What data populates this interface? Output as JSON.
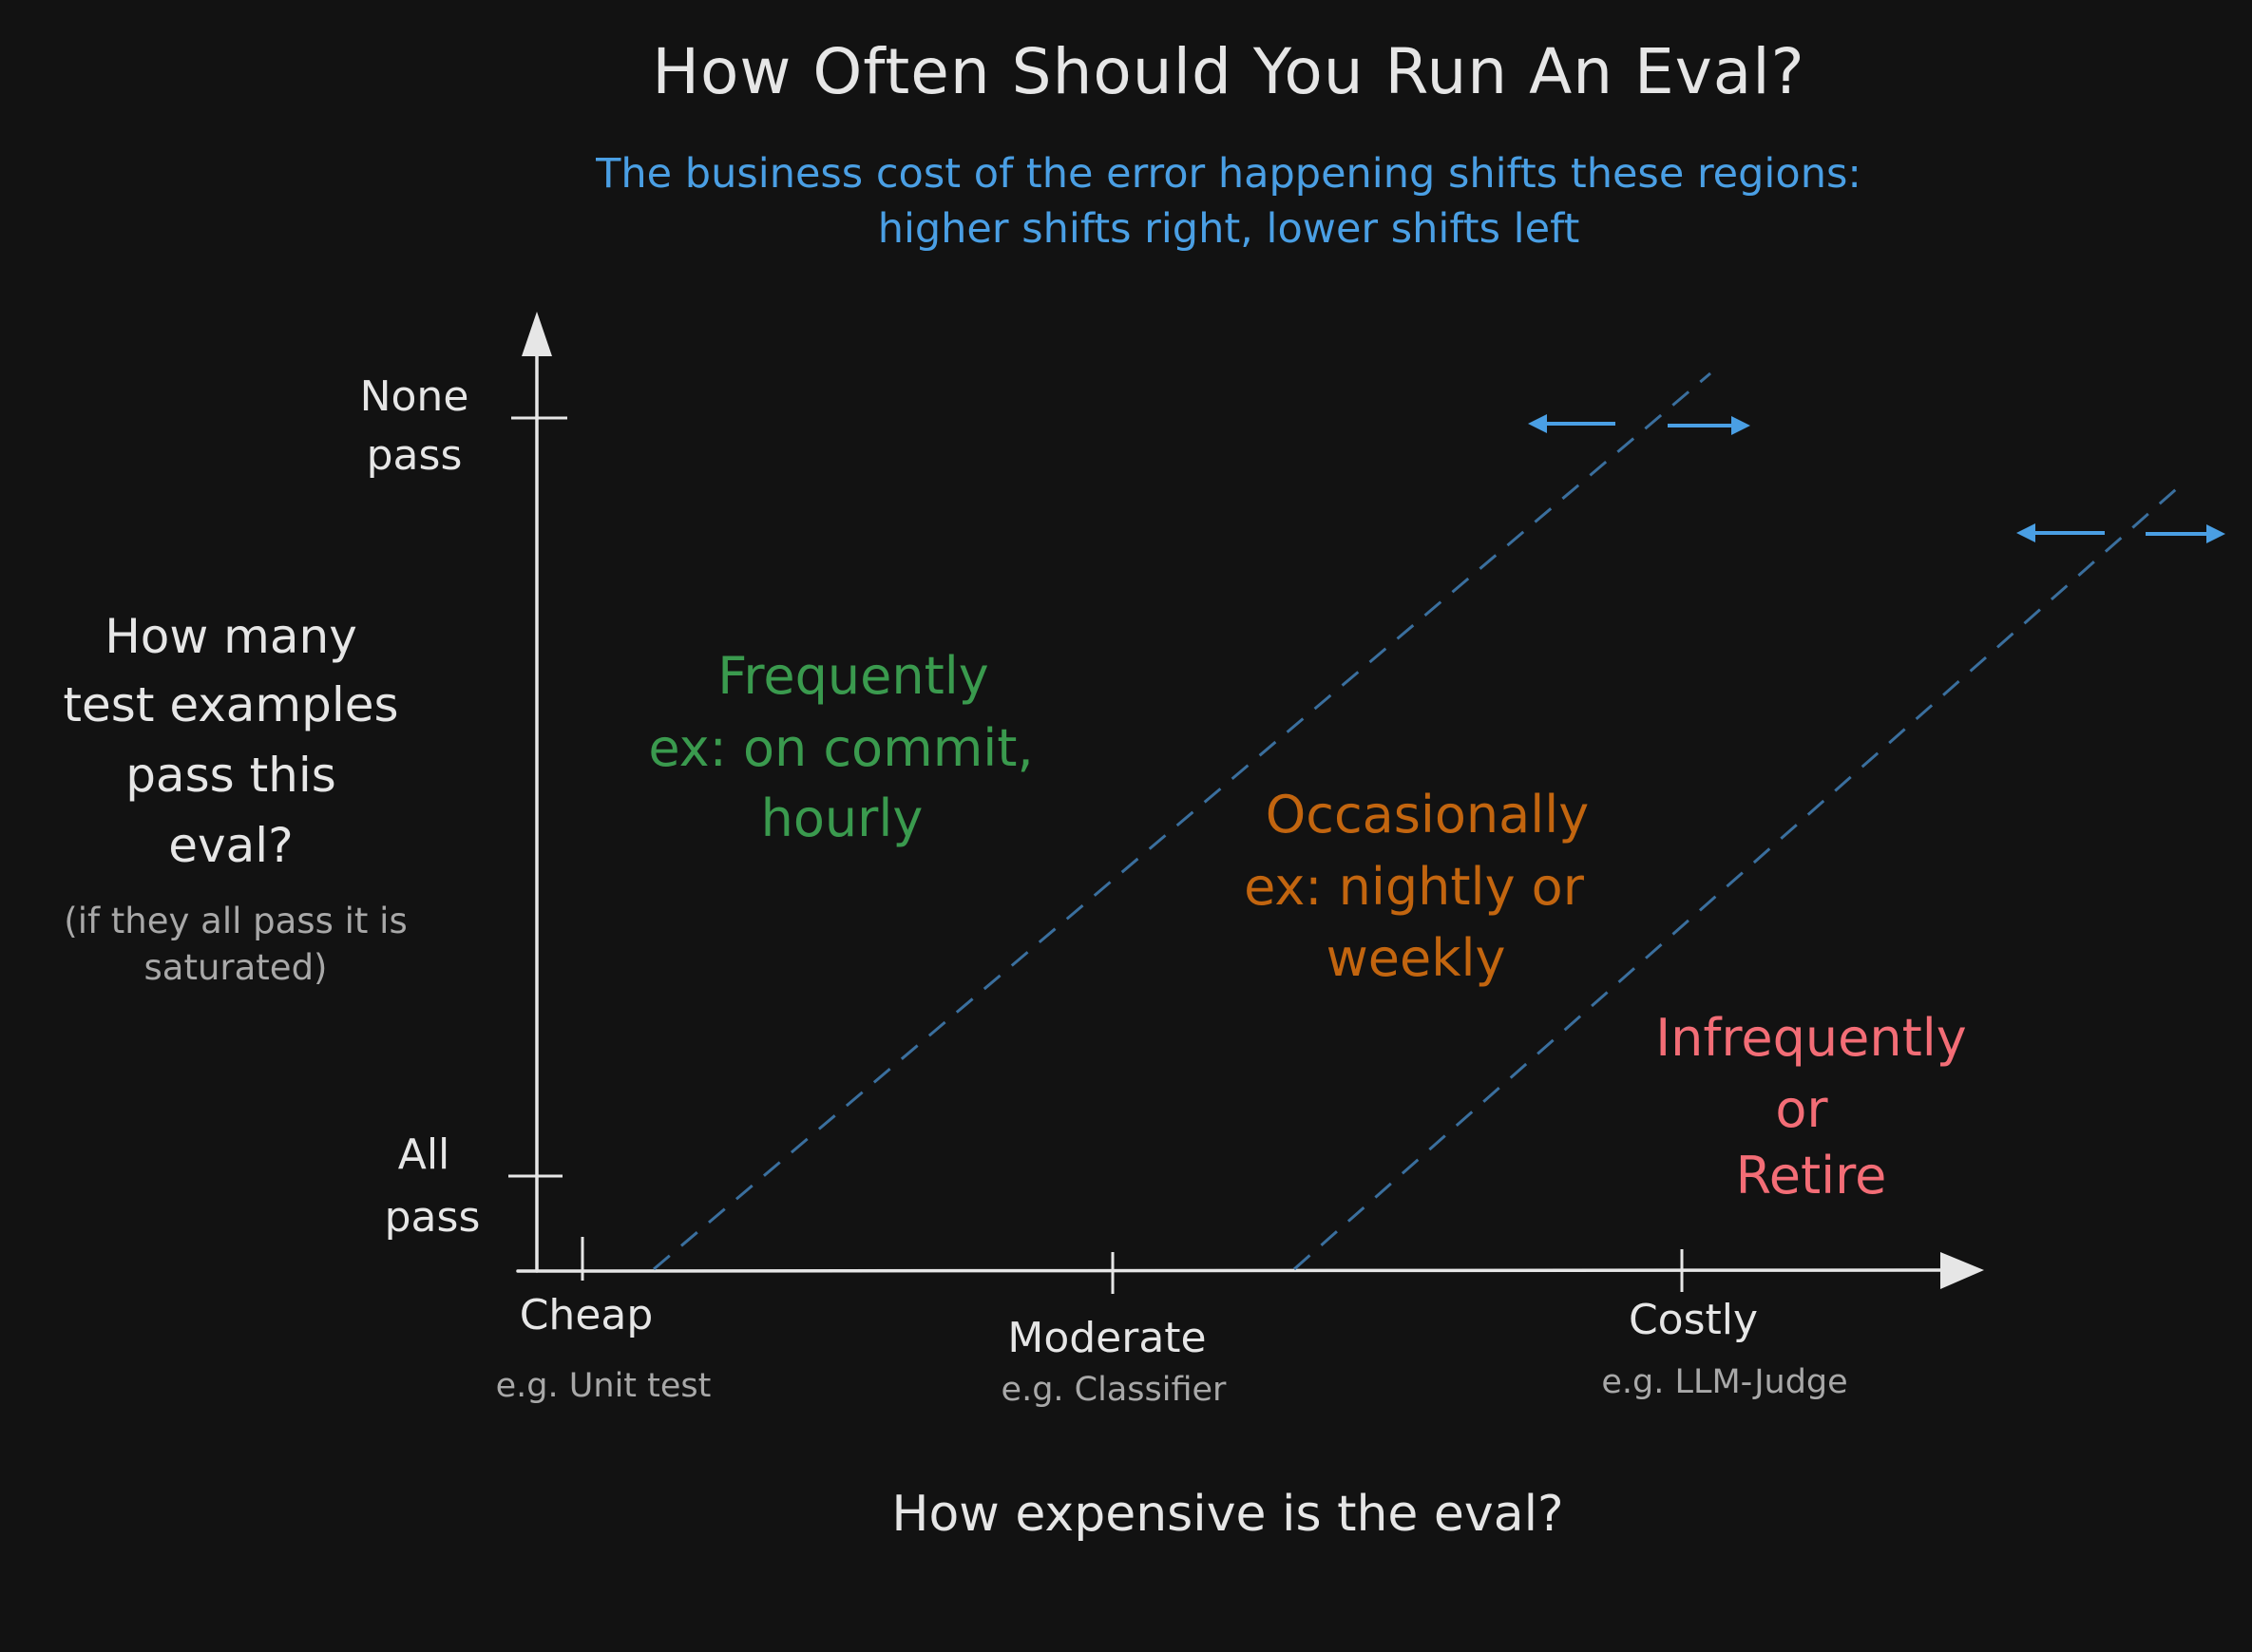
{
  "title": "How Often Should You Run An Eval?",
  "subtitle": {
    "line1": "The business cost of the error happening shifts these regions:",
    "line2": "higher shifts right, lower shifts left"
  },
  "y_axis": {
    "question": [
      "How many",
      "test examples",
      "pass this",
      "eval?"
    ],
    "note": [
      "(if they all pass it is",
      "saturated)"
    ],
    "ticks": {
      "top": [
        "None",
        "pass"
      ],
      "bottom": [
        "All",
        "pass"
      ]
    }
  },
  "x_axis": {
    "title": "How expensive is the eval?",
    "ticks": [
      {
        "label": "Cheap",
        "example": "e.g. Unit test"
      },
      {
        "label": "Moderate",
        "example": "e.g. Classifier"
      },
      {
        "label": "Costly",
        "example": "e.g. LLM-Judge"
      }
    ]
  },
  "regions": {
    "frequent": [
      "Frequently",
      "ex: on commit,",
      "hourly"
    ],
    "occasional": [
      "Occasionally",
      "ex: nightly or",
      "weekly"
    ],
    "infrequent": [
      "Infrequently",
      "or",
      "Retire"
    ]
  },
  "colors": {
    "background": "#121212",
    "axis": "#e6e6e6",
    "title_text": "#e6e6e6",
    "subtitle_text": "#4a9fe4",
    "secondary_text": "#a8a8a8",
    "boundary_line": "#3a6f9e",
    "shift_arrows": "#4a9fe4",
    "frequent": "#3a9a4e",
    "occasional": "#c2650f",
    "infrequent": "#f36d76"
  }
}
